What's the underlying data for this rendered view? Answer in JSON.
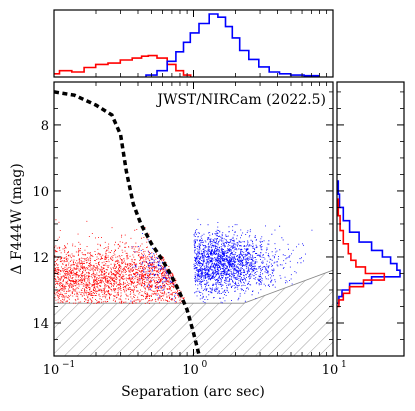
{
  "chart_data": {
    "type": "scatter",
    "annotation": "JWST/NIRCam (2022.5)",
    "xlabel": "Separation (arc sec)",
    "ylabel": "Δ F444W (mag)",
    "xscale": "log",
    "xlim": [
      0.1,
      10
    ],
    "ylim": [
      15,
      6.7
    ],
    "y_inverted": true,
    "x_tick_labels": [
      "10",
      "10",
      "10"
    ],
    "x_tick_exponents": [
      "−1",
      "0",
      "1"
    ],
    "x_tick_values": [
      0.1,
      1,
      10
    ],
    "y_tick_values": [
      8,
      10,
      12,
      14
    ],
    "y_tick_labels": [
      "8",
      "10",
      "12",
      "14"
    ],
    "hatched_region": {
      "description": "excluded region below detection floor",
      "boundary_x": [
        0.1,
        2.3,
        10
      ],
      "boundary_y": [
        13.4,
        13.4,
        12.4
      ]
    },
    "contrast_curve": {
      "style": "dashed",
      "color": "#000000",
      "x": [
        0.1,
        0.14,
        0.2,
        0.26,
        0.3,
        0.33,
        0.37,
        0.42,
        0.5,
        0.6,
        0.7,
        0.8,
        0.9,
        1.0,
        1.1
      ],
      "y": [
        7.0,
        7.1,
        7.4,
        7.7,
        8.3,
        9.4,
        10.4,
        11.0,
        11.6,
        12.1,
        12.6,
        13.1,
        13.6,
        14.3,
        15.0
      ]
    },
    "series": [
      {
        "color": "#ff0000",
        "x_range": [
          0.1,
          0.95
        ],
        "y_range": [
          10.2,
          13.4
        ],
        "y_center": 12.6,
        "point_count_approx": 9000
      },
      {
        "color": "#0000ff",
        "x_range": [
          0.35,
          10
        ],
        "y_range": [
          9.8,
          13.4
        ],
        "y_center": 12.2,
        "x_peak": 1.4,
        "point_count_approx": 14000
      }
    ],
    "top_histogram": {
      "description": "distribution of separation",
      "red": {
        "bin_centers": [
          0.1,
          0.12,
          0.15,
          0.18,
          0.22,
          0.27,
          0.33,
          0.4,
          0.45,
          0.5,
          0.6,
          0.7,
          0.8,
          0.9
        ],
        "heights": [
          0.05,
          0.1,
          0.08,
          0.15,
          0.2,
          0.22,
          0.27,
          0.3,
          0.33,
          0.34,
          0.3,
          0.2,
          0.1,
          0.03
        ]
      },
      "blue": {
        "bin_centers": [
          0.5,
          0.6,
          0.7,
          0.8,
          0.9,
          1.0,
          1.2,
          1.4,
          1.6,
          1.8,
          2.0,
          2.3,
          2.7,
          3.2,
          3.8,
          4.5,
          5.5,
          7.0
        ],
        "heights": [
          0.03,
          0.1,
          0.25,
          0.4,
          0.55,
          0.7,
          0.85,
          1.0,
          0.95,
          0.8,
          0.62,
          0.42,
          0.28,
          0.16,
          0.08,
          0.05,
          0.03,
          0.02
        ]
      }
    },
    "right_histogram": {
      "description": "distribution of magnitude contrast",
      "red": {
        "bin_centers": [
          10.5,
          11.0,
          11.4,
          11.8,
          12.0,
          12.2,
          12.4,
          12.6,
          12.8,
          13.0,
          13.2,
          13.4
        ],
        "heights": [
          0.02,
          0.05,
          0.1,
          0.18,
          0.22,
          0.3,
          0.45,
          0.75,
          0.42,
          0.2,
          0.1,
          0.03
        ]
      },
      "blue": {
        "bin_centers": [
          9.9,
          10.3,
          10.7,
          11.1,
          11.4,
          11.7,
          11.9,
          12.1,
          12.3,
          12.5,
          12.7,
          12.9,
          13.1,
          13.3
        ],
        "heights": [
          0.02,
          0.04,
          0.1,
          0.2,
          0.35,
          0.55,
          0.72,
          0.85,
          0.95,
          1.0,
          0.55,
          0.2,
          0.08,
          0.03
        ]
      }
    }
  }
}
